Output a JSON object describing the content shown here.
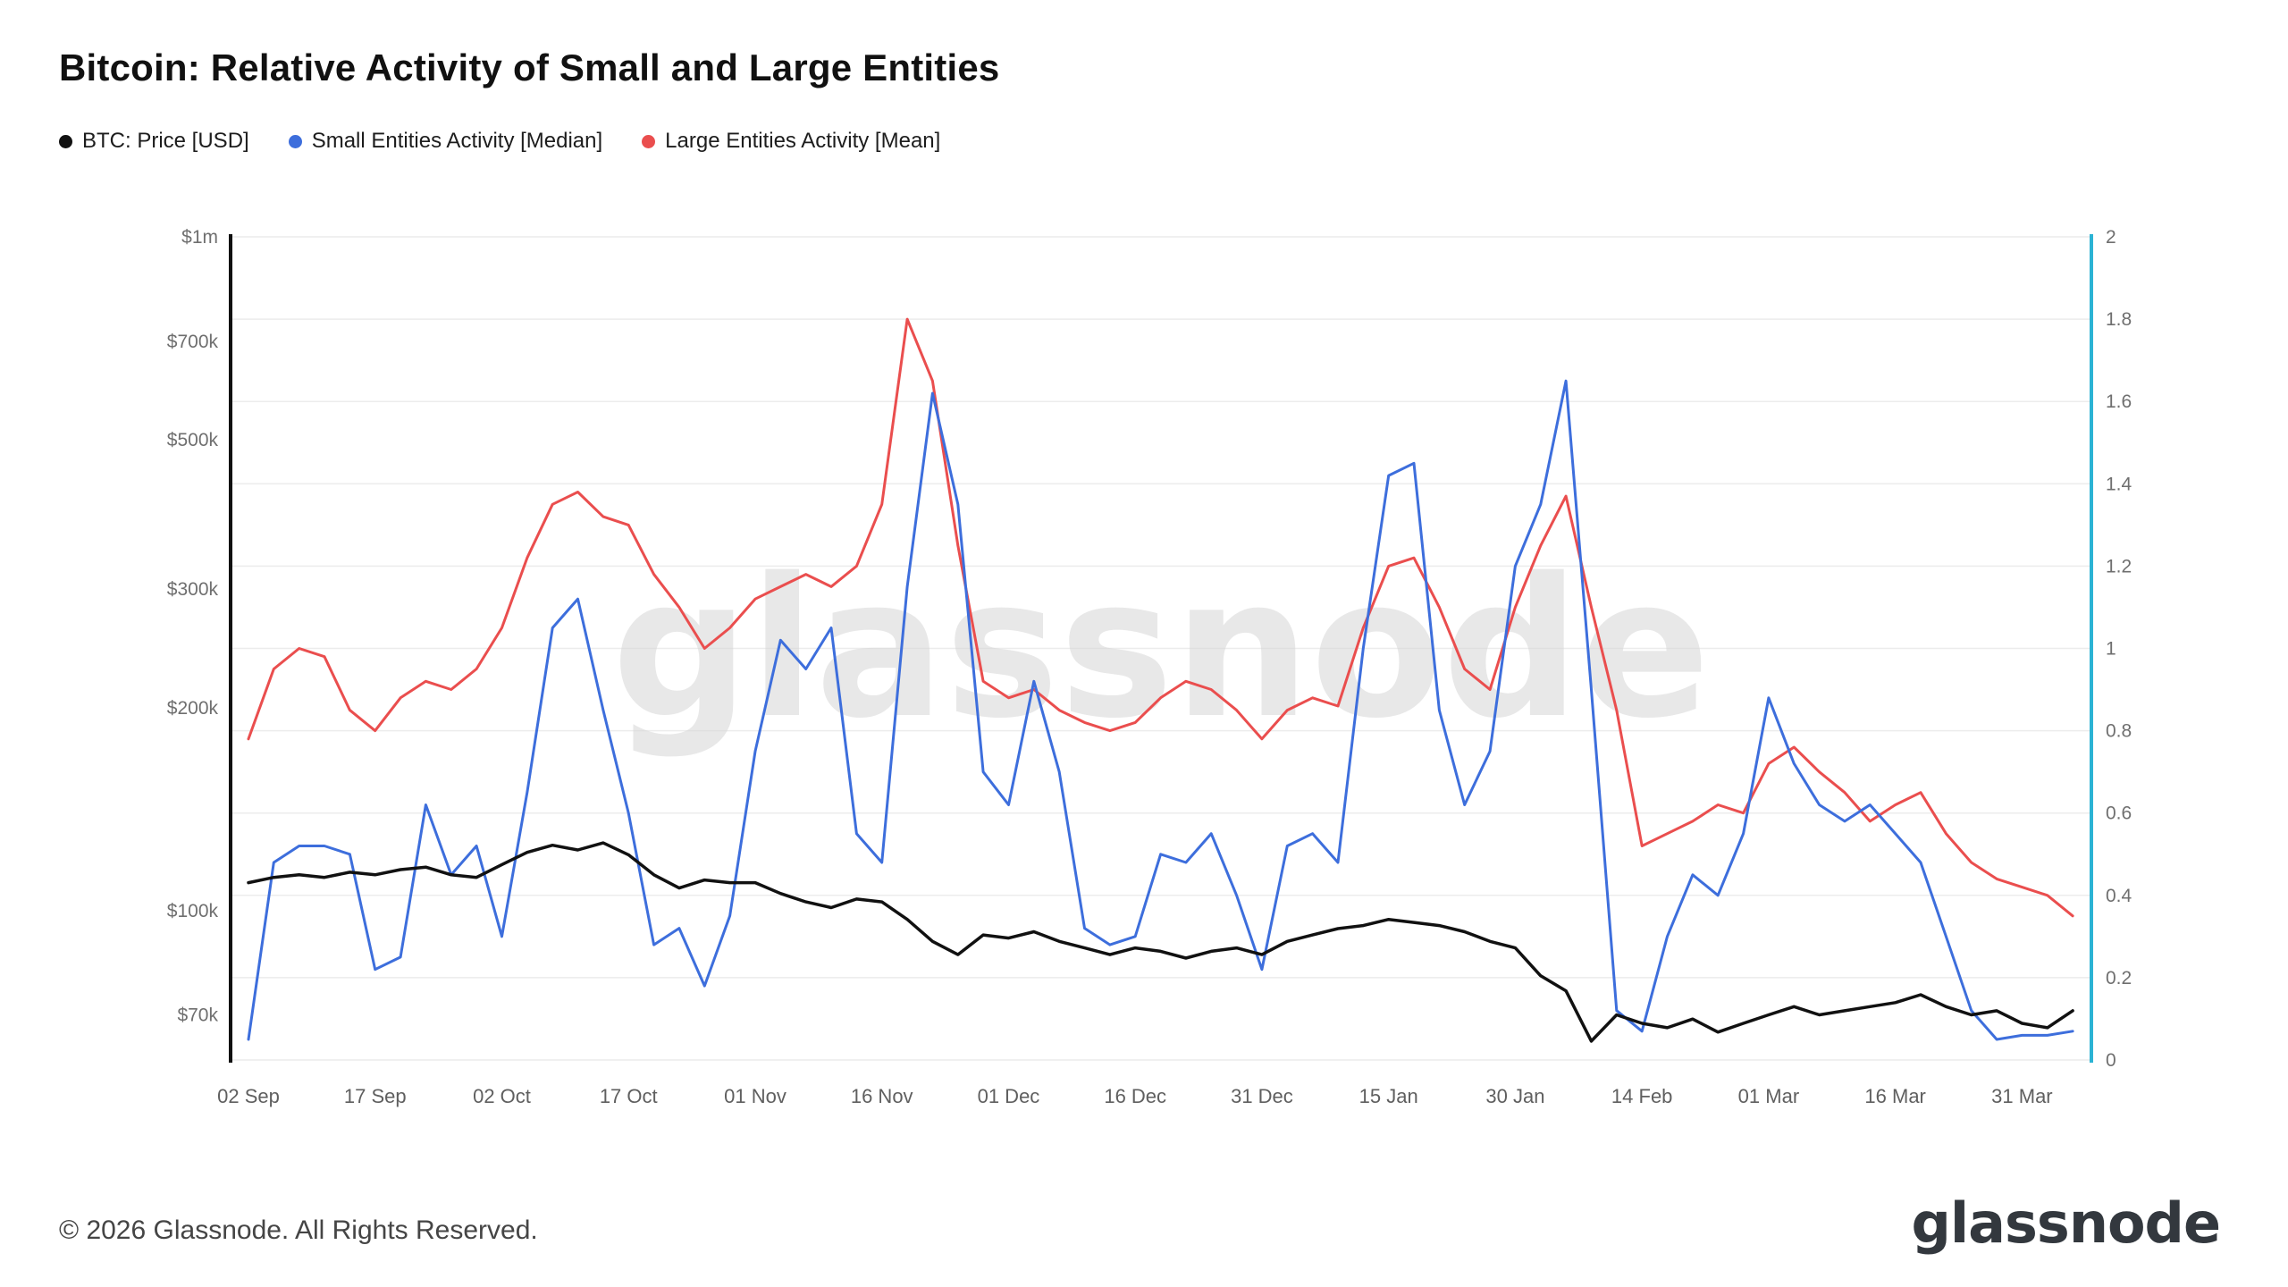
{
  "page": {
    "title": "Bitcoin: Relative Activity of Small and Large Entities",
    "footer": "© 2026 Glassnode. All Rights Reserved.",
    "brand_logo": "glassnode",
    "watermark": "glassnode"
  },
  "legend": [
    {
      "label": "BTC: Price [USD]",
      "color": "#111111"
    },
    {
      "label": "Small Entities Activity [Median]",
      "color": "#3d6edc"
    },
    {
      "label": "Large Entities Activity [Mean]",
      "color": "#ea4e4e"
    }
  ],
  "chart_data": {
    "type": "line",
    "title": "Bitcoin: Relative Activity of Small and Large Entities",
    "x_unit": "days since 02 Sep",
    "x_range": [
      0,
      218
    ],
    "x_ticks": [
      {
        "day": 0,
        "label": "02 Sep"
      },
      {
        "day": 15,
        "label": "17 Sep"
      },
      {
        "day": 30,
        "label": "02 Oct"
      },
      {
        "day": 45,
        "label": "17 Oct"
      },
      {
        "day": 60,
        "label": "01 Nov"
      },
      {
        "day": 75,
        "label": "16 Nov"
      },
      {
        "day": 90,
        "label": "01 Dec"
      },
      {
        "day": 105,
        "label": "16 Dec"
      },
      {
        "day": 120,
        "label": "31 Dec"
      },
      {
        "day": 135,
        "label": "15 Jan"
      },
      {
        "day": 150,
        "label": "30 Jan"
      },
      {
        "day": 165,
        "label": "14 Feb"
      },
      {
        "day": 180,
        "label": "01 Mar"
      },
      {
        "day": 195,
        "label": "16 Mar"
      },
      {
        "day": 210,
        "label": "31 Mar"
      }
    ],
    "left_axis": {
      "scale": "log",
      "range": [
        60000,
        1000000
      ],
      "spine_color": "#111111",
      "ticks": [
        {
          "value": 1000000,
          "label": "$1m"
        },
        {
          "value": 700000,
          "label": "$700k"
        },
        {
          "value": 500000,
          "label": "$500k"
        },
        {
          "value": 300000,
          "label": "$300k"
        },
        {
          "value": 200000,
          "label": "$200k"
        },
        {
          "value": 100000,
          "label": "$100k"
        },
        {
          "value": 70000,
          "label": "$70k"
        }
      ]
    },
    "right_axis": {
      "scale": "linear",
      "range": [
        0,
        2
      ],
      "spine_color": "#2bb3d4",
      "ticks": [
        {
          "value": 2,
          "label": "2"
        },
        {
          "value": 1.8,
          "label": "1.8"
        },
        {
          "value": 1.6,
          "label": "1.6"
        },
        {
          "value": 1.4,
          "label": "1.4"
        },
        {
          "value": 1.2,
          "label": "1.2"
        },
        {
          "value": 1,
          "label": "1"
        },
        {
          "value": 0.8,
          "label": "0.8"
        },
        {
          "value": 0.6,
          "label": "0.6"
        },
        {
          "value": 0.4,
          "label": "0.4"
        },
        {
          "value": 0.2,
          "label": "0.2"
        },
        {
          "value": 0,
          "label": "0"
        }
      ]
    },
    "grid": {
      "show": true,
      "color": "#ececec"
    },
    "x_days": [
      0,
      3,
      6,
      9,
      12,
      15,
      18,
      21,
      24,
      27,
      30,
      33,
      36,
      39,
      42,
      45,
      48,
      51,
      54,
      57,
      60,
      63,
      66,
      69,
      72,
      75,
      78,
      81,
      84,
      87,
      90,
      93,
      96,
      99,
      102,
      105,
      108,
      111,
      114,
      117,
      120,
      123,
      126,
      129,
      132,
      135,
      138,
      141,
      144,
      147,
      150,
      153,
      156,
      159,
      162,
      165,
      168,
      171,
      174,
      177,
      180,
      183,
      186,
      189,
      192,
      195,
      198,
      201,
      204,
      207,
      210,
      213,
      216
    ],
    "series": [
      {
        "name": "BTC: Price [USD]",
        "axis": "left",
        "color": "#111111",
        "width": 3.5,
        "values": [
          110000,
          112000,
          113000,
          112000,
          114000,
          113000,
          115000,
          116000,
          113000,
          112000,
          117000,
          122000,
          125000,
          123000,
          126000,
          121000,
          113000,
          108000,
          111000,
          110000,
          110000,
          106000,
          103000,
          101000,
          104000,
          103000,
          97000,
          90000,
          86000,
          92000,
          91000,
          93000,
          90000,
          88000,
          86000,
          88000,
          87000,
          85000,
          87000,
          88000,
          86000,
          90000,
          92000,
          94000,
          95000,
          97000,
          96000,
          95000,
          93000,
          90000,
          88000,
          80000,
          76000,
          64000,
          70000,
          68000,
          67000,
          69000,
          66000,
          68000,
          70000,
          72000,
          70000,
          71000,
          72000,
          73000,
          75000,
          72000,
          70000,
          71000,
          68000,
          67000,
          71000
        ]
      },
      {
        "name": "Small Entities Activity [Median]",
        "axis": "right",
        "color": "#3d6edc",
        "width": 3,
        "values": [
          0.05,
          0.48,
          0.52,
          0.52,
          0.5,
          0.22,
          0.25,
          0.62,
          0.45,
          0.52,
          0.3,
          0.65,
          1.05,
          1.12,
          0.85,
          0.6,
          0.28,
          0.32,
          0.18,
          0.35,
          0.75,
          1.02,
          0.95,
          1.05,
          0.55,
          0.48,
          1.15,
          1.62,
          1.35,
          0.7,
          0.62,
          0.92,
          0.7,
          0.32,
          0.28,
          0.3,
          0.5,
          0.48,
          0.55,
          0.4,
          0.22,
          0.52,
          0.55,
          0.48,
          1.0,
          1.42,
          1.45,
          0.85,
          0.62,
          0.75,
          1.2,
          1.35,
          1.65,
          0.9,
          0.12,
          0.07,
          0.3,
          0.45,
          0.4,
          0.55,
          0.88,
          0.72,
          0.62,
          0.58,
          0.62,
          0.55,
          0.48,
          0.3,
          0.12,
          0.05,
          0.06,
          0.06,
          0.07
        ]
      },
      {
        "name": "Large Entities Activity [Mean]",
        "axis": "right",
        "color": "#ea4e4e",
        "width": 3,
        "values": [
          0.78,
          0.95,
          1.0,
          0.98,
          0.85,
          0.8,
          0.88,
          0.92,
          0.9,
          0.95,
          1.05,
          1.22,
          1.35,
          1.38,
          1.32,
          1.3,
          1.18,
          1.1,
          1.0,
          1.05,
          1.12,
          1.15,
          1.18,
          1.15,
          1.2,
          1.35,
          1.8,
          1.65,
          1.25,
          0.92,
          0.88,
          0.9,
          0.85,
          0.82,
          0.8,
          0.82,
          0.88,
          0.92,
          0.9,
          0.85,
          0.78,
          0.85,
          0.88,
          0.86,
          1.05,
          1.2,
          1.22,
          1.1,
          0.95,
          0.9,
          1.1,
          1.25,
          1.37,
          1.1,
          0.85,
          0.52,
          0.55,
          0.58,
          0.62,
          0.6,
          0.72,
          0.76,
          0.7,
          0.65,
          0.58,
          0.62,
          0.65,
          0.55,
          0.48,
          0.44,
          0.42,
          0.4,
          0.35
        ]
      }
    ],
    "legend_position": "top-left",
    "watermark": "glassnode"
  }
}
